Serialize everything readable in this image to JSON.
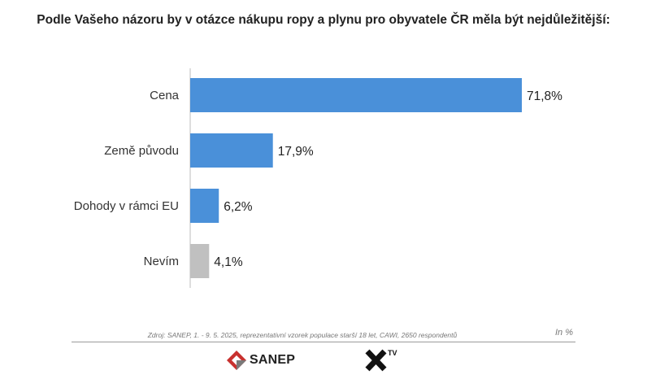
{
  "title": "Podle Vašeho názoru by v otázce nákupu ropy a plynu pro obyvatele ČR měla být nejdůležitější:",
  "chart_data": {
    "type": "bar",
    "orientation": "horizontal",
    "categories": [
      "Cena",
      "Země původu",
      "Dohody v rámci EU",
      "Nevím"
    ],
    "values": [
      71.8,
      17.9,
      6.2,
      4.1
    ],
    "value_labels": [
      "71,8%",
      "17,9%",
      "6,2%",
      "4,1%"
    ],
    "colors": [
      "#4a90d9",
      "#4a90d9",
      "#4a90d9",
      "#c0c0c0"
    ],
    "xlim": [
      0,
      71.8
    ],
    "grid": false
  },
  "footer": {
    "source": "Zdroj: SANEP, 1. - 9. 5. 2025, reprezentativní vzorek populace starší 18 let, CAWI, 2650 respondentů",
    "unit": "In %",
    "logo_sanep": "SANEP",
    "logo_xtv": "TV"
  }
}
